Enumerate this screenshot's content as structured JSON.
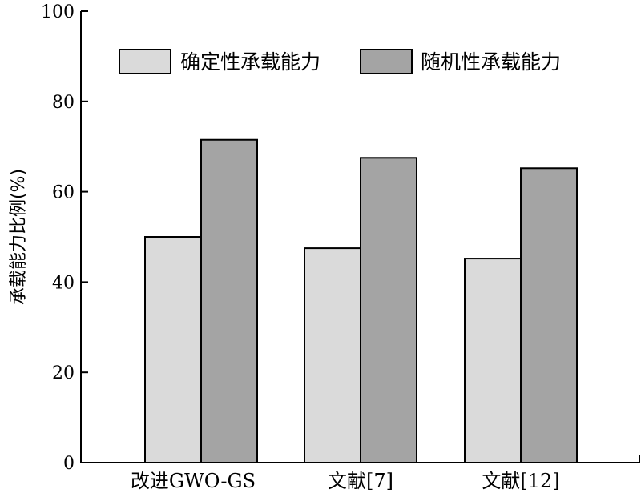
{
  "chart_data": {
    "type": "bar",
    "title": "",
    "xlabel": "",
    "ylabel": "承载能力比例(%)",
    "ylim": [
      0,
      100
    ],
    "yticks": [
      0,
      20,
      40,
      60,
      80,
      100
    ],
    "categories": [
      "改进GWO-GS",
      "文献[7]",
      "文献[12]"
    ],
    "series": [
      {
        "name": "确定性承载能力",
        "values": [
          50.0,
          47.5,
          45.2
        ],
        "color": "#dadada"
      },
      {
        "name": "随机性承载能力",
        "values": [
          71.5,
          67.5,
          65.2
        ],
        "color": "#a4a4a4"
      }
    ],
    "legend": "top",
    "grid": false
  }
}
